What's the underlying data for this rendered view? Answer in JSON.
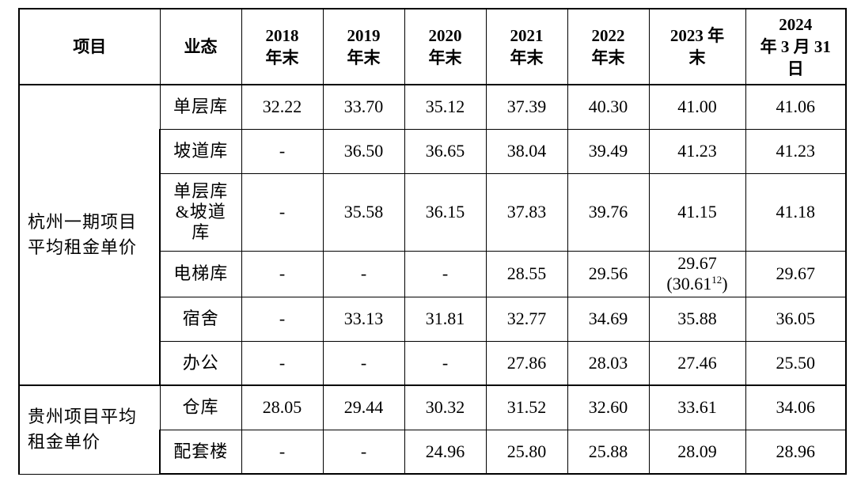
{
  "table": {
    "headers": {
      "item": "项目",
      "business": "业态",
      "y2018_line1": "2018",
      "y2018_line2": "年末",
      "y2019_line1": "2019",
      "y2019_line2": "年末",
      "y2020_line1": "2020",
      "y2020_line2": "年末",
      "y2021_line1": "2021",
      "y2021_line2": "年末",
      "y2022_line1": "2022",
      "y2022_line2": "年末",
      "y2023_line1": "2023 年",
      "y2023_line2": "末",
      "y2024_line1": "2024",
      "y2024_line2": "年 3 月 31",
      "y2024_line3": "日"
    },
    "groups": {
      "hangzhou": {
        "label_line1": "杭州一期项目",
        "label_line2": "平均租金单价",
        "rows": {
          "r0": {
            "business": "单层库",
            "v2018": "32.22",
            "v2019": "33.70",
            "v2020": "35.12",
            "v2021": "37.39",
            "v2022": "40.30",
            "v2023": "41.00",
            "v2024": "41.06"
          },
          "r1": {
            "business": "坡道库",
            "v2018": "-",
            "v2019": "36.50",
            "v2020": "36.65",
            "v2021": "38.04",
            "v2022": "39.49",
            "v2023": "41.23",
            "v2024": "41.23"
          },
          "r2": {
            "business_line1": "单层库",
            "business_line2": "&坡道",
            "business_line3": "库",
            "v2018": "-",
            "v2019": "35.58",
            "v2020": "36.15",
            "v2021": "37.83",
            "v2022": "39.76",
            "v2023": "41.15",
            "v2024": "41.18"
          },
          "r3": {
            "business": "电梯库",
            "v2018": "-",
            "v2019": "-",
            "v2020": "-",
            "v2021": "28.55",
            "v2022": "29.56",
            "v2023_line1": "29.67",
            "v2023_line2_a": "(30.61",
            "v2023_line2_sup": "12",
            "v2023_line2_b": ")",
            "v2024": "29.67"
          },
          "r4": {
            "business": "宿舍",
            "v2018": "-",
            "v2019": "33.13",
            "v2020": "31.81",
            "v2021": "32.77",
            "v2022": "34.69",
            "v2023": "35.88",
            "v2024": "36.05"
          },
          "r5": {
            "business": "办公",
            "v2018": "-",
            "v2019": "-",
            "v2020": "-",
            "v2021": "27.86",
            "v2022": "28.03",
            "v2023": "27.46",
            "v2024": "25.50"
          }
        }
      },
      "guizhou": {
        "label_line1": "贵州项目平均",
        "label_line2": "租金单价",
        "rows": {
          "r0": {
            "business": "仓库",
            "v2018": "28.05",
            "v2019": "29.44",
            "v2020": "30.32",
            "v2021": "31.52",
            "v2022": "32.60",
            "v2023": "33.61",
            "v2024": "34.06"
          },
          "r1": {
            "business": "配套楼",
            "v2018": "-",
            "v2019": "-",
            "v2020": "24.96",
            "v2021": "25.80",
            "v2022": "25.88",
            "v2023": "28.09",
            "v2024": "28.96"
          }
        }
      }
    }
  }
}
